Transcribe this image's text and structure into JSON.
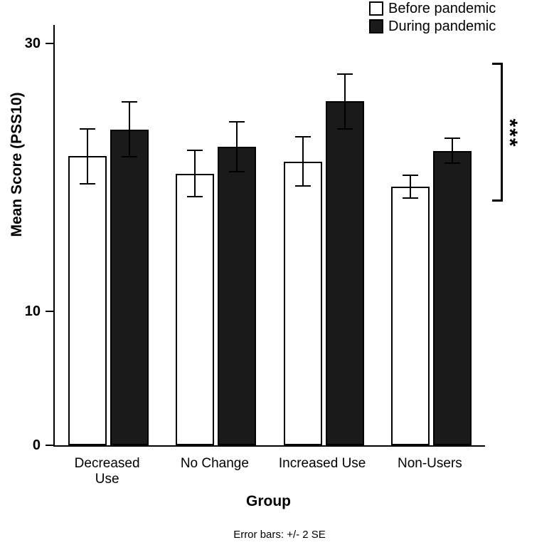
{
  "chart_data": {
    "type": "bar",
    "title": "",
    "categories": [
      "Decreased Use",
      "No Change",
      "Increased Use",
      "Non-Users"
    ],
    "category_display": [
      "Decreased\nUse",
      "No Change",
      "Increased Use",
      "Non-Users"
    ],
    "series": [
      {
        "name": "Before pandemic",
        "fill": "#ffffff",
        "values": [
          21.6,
          20.3,
          21.2,
          19.3
        ],
        "errors": [
          2.1,
          1.8,
          1.9,
          0.9
        ]
      },
      {
        "name": "During pandemic",
        "fill": "#1a1a1a",
        "values": [
          23.6,
          22.3,
          25.7,
          22.0
        ],
        "errors": [
          2.1,
          1.9,
          2.1,
          1.0
        ]
      }
    ],
    "xlabel": "Group",
    "ylabel": "Mean Score (PSS10)",
    "ylim": [
      0,
      31.4
    ],
    "yticks": [
      {
        "value": 30,
        "label": "30"
      },
      {
        "value": 10,
        "label": "10"
      },
      {
        "value": 0,
        "label": "0"
      }
    ],
    "grid": false,
    "legend_position": "top-right",
    "footnote": "Error bars: +/- 2 SE",
    "significance": {
      "label": "***",
      "from": 18.2,
      "to": 28.6
    },
    "colors": {
      "axis": "#000000",
      "bar_outline": "#000000",
      "before_fill": "#ffffff",
      "during_fill": "#1a1a1a"
    }
  }
}
